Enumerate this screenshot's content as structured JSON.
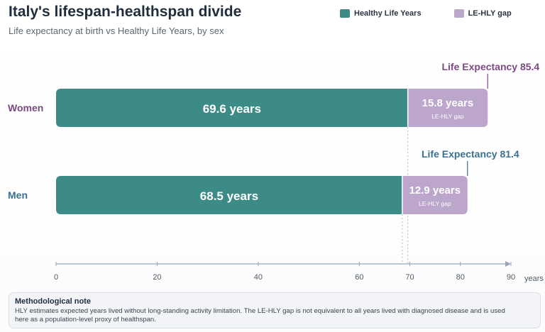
{
  "title": "Italy's lifespan-healthspan divide",
  "subtitle": "Life expectancy at birth vs Healthy Life Years, by sex",
  "colors": {
    "hly": "#3d8b87",
    "gap": "#bca6cc",
    "women": "#7a4b80",
    "men": "#3a7192",
    "axis": "#98a6b3",
    "text": "#1f2d3d"
  },
  "legend": {
    "hly": "Healthy Life Years",
    "gap": "LE-HLY gap"
  },
  "chart_data": {
    "type": "bar",
    "orientation": "horizontal",
    "stacked": true,
    "categories": [
      "Women",
      "Men"
    ],
    "series": [
      {
        "name": "Healthy Life Years",
        "values": [
          69.6,
          68.5
        ]
      },
      {
        "name": "LE-HLY gap",
        "values": [
          15.8,
          12.9
        ]
      }
    ],
    "life_expectancy": [
      85.4,
      81.4
    ],
    "bar_labels": {
      "hly": [
        "69.6 years",
        "68.5 years"
      ],
      "gap": [
        "15.8 years",
        "12.9 years"
      ],
      "gap_sub": [
        "LE-HLY gap",
        "LE-HLY gap"
      ],
      "le": [
        "Life Expectancy 85.4",
        "Life Expectancy 81.4"
      ]
    },
    "xlim": [
      0,
      90
    ],
    "xticks": [
      0,
      20,
      40,
      60,
      70,
      80,
      90
    ],
    "xlabel": "years",
    "grid": false
  },
  "note": {
    "title": "Methodological note",
    "line1": "HLY estimates expected years lived without long-standing activity limitation. The LE-HLY gap is not equivalent to all years lived with diagnosed disease and is used",
    "line2": "here as a population-level proxy of healthspan."
  }
}
